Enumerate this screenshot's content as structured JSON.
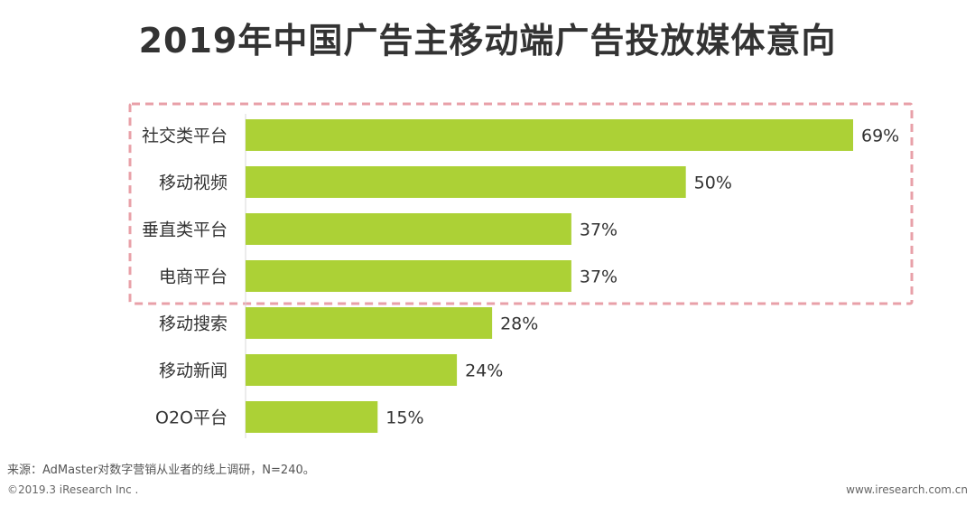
{
  "title": "2019年中国广告主移动端广告投放媒体意向",
  "chart_data": {
    "type": "bar",
    "orientation": "horizontal",
    "categories": [
      "社交类平台",
      "移动视频",
      "垂直类平台",
      "电商平台",
      "移动搜索",
      "移动新闻",
      "O2O平台"
    ],
    "values": [
      69,
      50,
      37,
      37,
      28,
      24,
      15
    ],
    "value_labels": [
      "69%",
      "50%",
      "37%",
      "37%",
      "28%",
      "24%",
      "15%"
    ],
    "unit": "%",
    "xlim": [
      0,
      69
    ],
    "grid": false,
    "bar_color": "#acd136",
    "highlight": {
      "style": "dashed-box",
      "color": "#e8a0a8",
      "categories": [
        "社交类平台",
        "移动视频",
        "垂直类平台",
        "电商平台"
      ]
    }
  },
  "footer": {
    "source": "来源：AdMaster对数字营销从业者的线上调研，N=240。",
    "copyright": "©2019.3 iResearch Inc .",
    "website": "www.iresearch.com.cn"
  }
}
